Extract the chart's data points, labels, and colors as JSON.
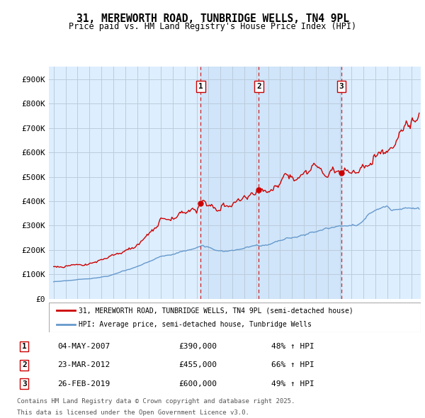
{
  "title": "31, MEREWORTH ROAD, TUNBRIDGE WELLS, TN4 9PL",
  "subtitle": "Price paid vs. HM Land Registry's House Price Index (HPI)",
  "legend_line1": "31, MEREWORTH ROAD, TUNBRIDGE WELLS, TN4 9PL (semi-detached house)",
  "legend_line2": "HPI: Average price, semi-detached house, Tunbridge Wells",
  "transactions": [
    {
      "num": 1,
      "date": "04-MAY-2007",
      "price": 390000,
      "pct": "48%",
      "dir": "↑",
      "year": 2007.34
    },
    {
      "num": 2,
      "date": "23-MAR-2012",
      "price": 455000,
      "pct": "66%",
      "dir": "↑",
      "year": 2012.22
    },
    {
      "num": 3,
      "date": "26-FEB-2019",
      "price": 600000,
      "pct": "49%",
      "dir": "↑",
      "year": 2019.15
    }
  ],
  "footer_line1": "Contains HM Land Registry data © Crown copyright and database right 2025.",
  "footer_line2": "This data is licensed under the Open Government Licence v3.0.",
  "red_color": "#cc0000",
  "blue_color": "#6699cc",
  "bg_color": "#ddeeff",
  "highlight_color": "#cce0f5",
  "grid_color": "#bbccdd",
  "ylim": [
    0,
    950000
  ],
  "yticks": [
    0,
    100000,
    200000,
    300000,
    400000,
    500000,
    600000,
    700000,
    800000,
    900000
  ],
  "ytick_labels": [
    "£0",
    "£100K",
    "£200K",
    "£300K",
    "£400K",
    "£500K",
    "£600K",
    "£700K",
    "£800K",
    "£900K"
  ],
  "xlim_left": 1994.6,
  "xlim_right": 2025.8
}
